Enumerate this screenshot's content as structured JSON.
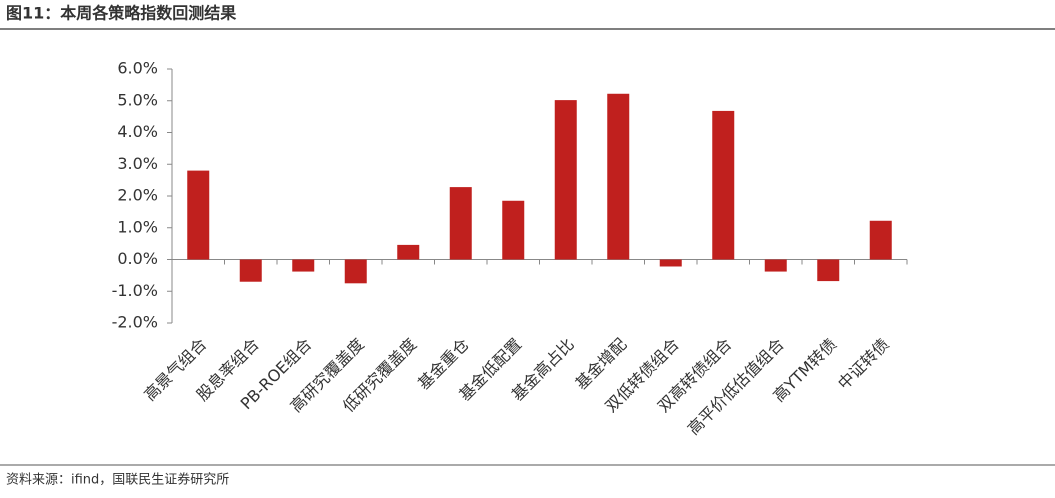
{
  "title": "图11：本周各策略指数回测结果",
  "source": "资料来源：ifind，国联民生证券研究所",
  "chart_data": {
    "type": "bar",
    "categories": [
      "高景气组合",
      "股息率组合",
      "PB-ROE组合",
      "高研究覆盖度",
      "低研究覆盖度",
      "基金重仓",
      "基金低配置",
      "基金高占比",
      "基金增配",
      "双低转债组合",
      "双高转债组合",
      "高平价低估值组合",
      "高YTM转债",
      "中证转债"
    ],
    "values": [
      2.8,
      -0.7,
      -0.38,
      -0.75,
      0.46,
      2.28,
      1.85,
      5.02,
      5.22,
      -0.22,
      4.68,
      -0.38,
      -0.68,
      1.22
    ],
    "color": "#c0201e",
    "ylim": [
      -2,
      6
    ],
    "yticks": [
      {
        "value": -2,
        "label": "-2.0%"
      },
      {
        "value": -1,
        "label": "-1.0%"
      },
      {
        "value": 0,
        "label": "0.0%"
      },
      {
        "value": 1,
        "label": "1.0%"
      },
      {
        "value": 2,
        "label": "2.0%"
      },
      {
        "value": 3,
        "label": "3.0%"
      },
      {
        "value": 4,
        "label": "4.0%"
      },
      {
        "value": 5,
        "label": "5.0%"
      },
      {
        "value": 6,
        "label": "6.0%"
      }
    ]
  }
}
